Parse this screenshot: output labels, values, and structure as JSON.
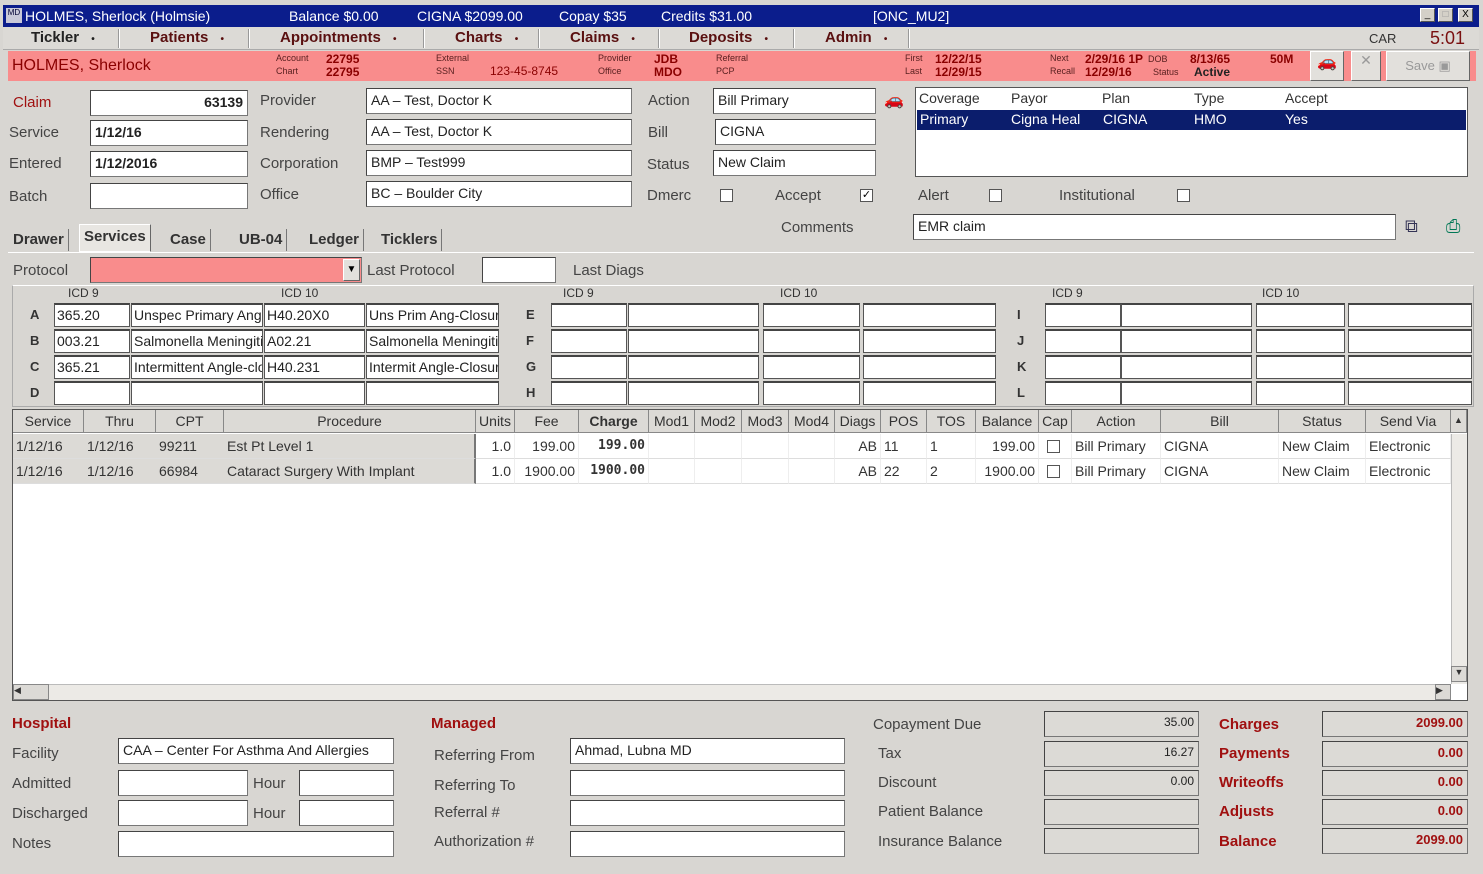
{
  "titlebar": {
    "patient": "HOLMES, Sherlock  (Holmsie)",
    "balance": "Balance $0.00",
    "insurance": "CIGNA $2099.00",
    "copay": "Copay $35",
    "credits": "Credits $31.00",
    "station": "[ONC_MU2]",
    "minimize": "_",
    "maximize": "□",
    "close": "X"
  },
  "menu": {
    "items": [
      "Tickler",
      "Patients",
      "Appointments",
      "Charts",
      "Claims",
      "Deposits",
      "Admin"
    ],
    "arrow": "•",
    "user": "CAR",
    "time": "5:01"
  },
  "patient_bar": {
    "name": "HOLMES, Sherlock",
    "account_label": "Account",
    "account": "22795",
    "chart_label": "Chart",
    "chart": "22795",
    "external_label": "External",
    "ssn_label": "SSN",
    "ssn": "123-45-8745",
    "provider_label": "Provider",
    "provider": "JDB",
    "office_label": "Office",
    "office": "MDO",
    "referral_label": "Referral",
    "pcp_label": "PCP",
    "first_label": "First",
    "first": "12/22/15",
    "last_label": "Last",
    "last": "12/29/15",
    "next_label": "Next",
    "next": "2/29/16 1P",
    "dob_label": "DOB",
    "dob": "8/13/65",
    "age_sex": "50M",
    "recall_label": "Recall",
    "recall": "12/29/16",
    "status_label": "Status",
    "status": "Active",
    "save_label": "Save"
  },
  "claim": {
    "claim_label": "Claim",
    "claim": "63139",
    "service_label": "Service",
    "service": "1/12/16",
    "entered_label": "Entered",
    "entered": "1/12/2016",
    "batch_label": "Batch",
    "batch": "",
    "provider_label": "Provider",
    "provider": "AA – Test, Doctor K",
    "rendering_label": "Rendering",
    "rendering": "AA – Test, Doctor K",
    "corporation_label": "Corporation",
    "corporation": "BMP – Test999",
    "office_label": "Office",
    "office": "BC – Boulder City",
    "action_label": "Action",
    "action": "Bill Primary",
    "bill_label": "Bill",
    "bill": "CIGNA",
    "status_label": "Status",
    "status": "New Claim",
    "dmerc_label": "Dmerc",
    "dmerc": false,
    "accept_label": "Accept",
    "accept": true,
    "comments_label": "Comments",
    "comments": "EMR claim",
    "alert_label": "Alert",
    "alert": false,
    "institutional_label": "Institutional",
    "institutional": false
  },
  "coverage": {
    "headers": [
      "Coverage",
      "Payor",
      "Plan",
      "Type",
      "Accept"
    ],
    "rows": [
      [
        "Primary",
        "Cigna Heal",
        "CIGNA",
        "HMO",
        "Yes"
      ]
    ]
  },
  "tabs": [
    "Drawer",
    "Services",
    "Case",
    "UB-04",
    "Ledger",
    "Ticklers"
  ],
  "active_tab": "Services",
  "protocol": {
    "label": "Protocol",
    "value": "",
    "last_protocol_label": "Last Protocol",
    "last_protocol": "",
    "last_diags_label": "Last Diags"
  },
  "diagnoses": {
    "icd9_label": "ICD 9",
    "icd10_label": "ICD 10",
    "rows": [
      {
        "letter": "A",
        "icd9": "365.20",
        "icd9_desc": "Unspec Primary Angle",
        "icd10": "H40.20X0",
        "icd10_desc": "Uns Prim Ang-Closure"
      },
      {
        "letter": "B",
        "icd9": "003.21",
        "icd9_desc": "Salmonella Meningitis",
        "icd10": "A02.21",
        "icd10_desc": "Salmonella Meningitis"
      },
      {
        "letter": "C",
        "icd9": "365.21",
        "icd9_desc": "Intermittent Angle-closure",
        "icd10": "H40.231",
        "icd10_desc": "Intermit Angle-Closure"
      },
      {
        "letter": "D",
        "icd9": "",
        "icd9_desc": "",
        "icd10": "",
        "icd10_desc": ""
      },
      {
        "letter": "E",
        "icd9": "",
        "icd9_desc": "",
        "icd10": "",
        "icd10_desc": ""
      },
      {
        "letter": "F",
        "icd9": "",
        "icd9_desc": "",
        "icd10": "",
        "icd10_desc": ""
      },
      {
        "letter": "G",
        "icd9": "",
        "icd9_desc": "",
        "icd10": "",
        "icd10_desc": ""
      },
      {
        "letter": "H",
        "icd9": "",
        "icd9_desc": "",
        "icd10": "",
        "icd10_desc": ""
      },
      {
        "letter": "I",
        "icd9": "",
        "icd9_desc": "",
        "icd10": "",
        "icd10_desc": ""
      },
      {
        "letter": "J",
        "icd9": "",
        "icd9_desc": "",
        "icd10": "",
        "icd10_desc": ""
      },
      {
        "letter": "K",
        "icd9": "",
        "icd9_desc": "",
        "icd10": "",
        "icd10_desc": ""
      },
      {
        "letter": "L",
        "icd9": "",
        "icd9_desc": "",
        "icd10": "",
        "icd10_desc": ""
      }
    ]
  },
  "services": {
    "columns": [
      "Service",
      "Thru",
      "CPT",
      "Procedure",
      "Units",
      "Fee",
      "Charge",
      "Mod1",
      "Mod2",
      "Mod3",
      "Mod4",
      "Diags",
      "POS",
      "TOS",
      "Balance",
      "Cap",
      "Action",
      "Bill",
      "Status",
      "Send Via"
    ],
    "rows": [
      [
        "1/12/16",
        "1/12/16",
        "99211",
        "Est Pt Level 1",
        "1.0",
        "199.00",
        "199.00",
        "",
        "",
        "",
        "",
        "AB",
        "11",
        "1",
        "199.00",
        "",
        "Bill Primary",
        "CIGNA",
        "New Claim",
        "Electronic"
      ],
      [
        "1/12/16",
        "1/12/16",
        "66984",
        "Cataract Surgery With Implant",
        "1.0",
        "1900.00",
        "1900.00",
        "",
        "",
        "",
        "",
        "AB",
        "22",
        "2",
        "1900.00",
        "",
        "Bill Primary",
        "CIGNA",
        "New Claim",
        "Electronic"
      ]
    ]
  },
  "hospital": {
    "title": "Hospital",
    "facility_label": "Facility",
    "facility": "CAA – Center For Asthma And Allergies",
    "admitted_label": "Admitted",
    "admitted": "",
    "discharged_label": "Discharged",
    "discharged": "",
    "hour_label": "Hour",
    "notes_label": "Notes",
    "notes": ""
  },
  "managed": {
    "title": "Managed",
    "referring_from_label": "Referring From",
    "referring_from": "Ahmad,  Lubna MD",
    "referring_to_label": "Referring To",
    "referring_to": "",
    "referral_label": "Referral #",
    "referral": "",
    "authorization_label": "Authorization #",
    "authorization": ""
  },
  "totals": {
    "copayment_due_label": "Copayment Due",
    "copayment_due": "35.00",
    "tax_label": "Tax",
    "tax": "16.27",
    "discount_label": "Discount",
    "discount": "0.00",
    "patient_balance_label": "Patient Balance",
    "patient_balance": "",
    "insurance_balance_label": "Insurance Balance",
    "insurance_balance": "",
    "charges_label": "Charges",
    "charges": "2099.00",
    "payments_label": "Payments",
    "payments": "0.00",
    "writeoffs_label": "Writeoffs",
    "writeoffs": "0.00",
    "adjusts_label": "Adjusts",
    "adjusts": "0.00",
    "balance_label": "Balance",
    "balance": "2099.00"
  },
  "colors": {
    "title_bar": "#0b1d8c",
    "patient_bar": "#f98c8c",
    "label_red": "#a01010",
    "selection": "#0b1d6c"
  }
}
